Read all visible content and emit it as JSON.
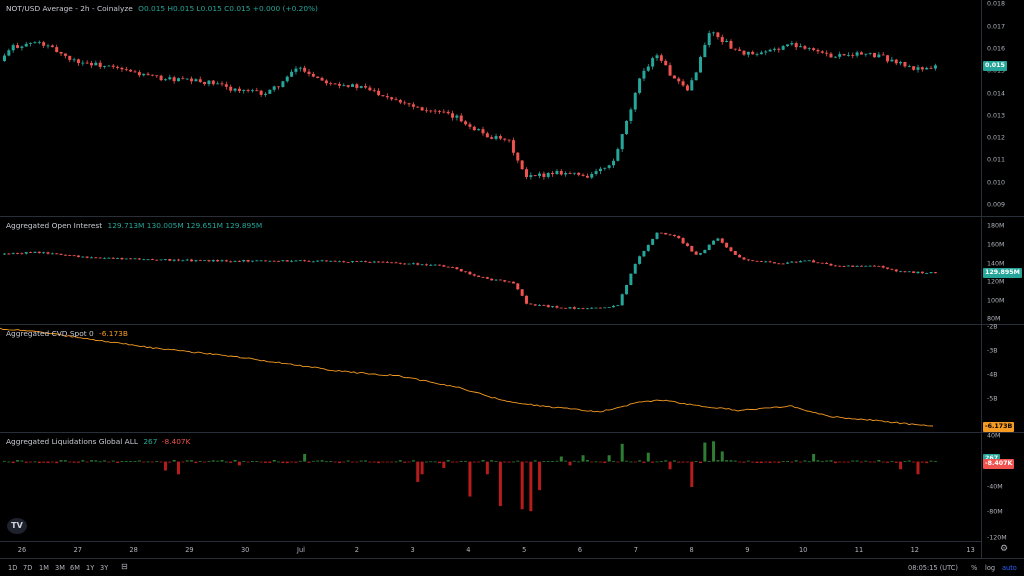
{
  "colors": {
    "up": "#26a69a",
    "down": "#ef5350",
    "cvd": "#f59a23",
    "liq_up": "#1b5e20",
    "liq_down": "#8e1f1a",
    "bg": "#000000"
  },
  "price_pane": {
    "title": "NOT/USD Average - 2h - Coinalyze",
    "ohlc": "O0.015 H0.015 L0.015 C0.015 +0.000 (+0.20%)",
    "ticks": [
      "0.018",
      "0.017",
      "0.016",
      "0.015",
      "0.014",
      "0.013",
      "0.012",
      "0.011",
      "0.010",
      "0.009"
    ],
    "last": "0.015"
  },
  "oi_pane": {
    "title": "Aggregated Open Interest",
    "ohlc": "129.713M 130.005M 129.651M 129.895M",
    "ticks": [
      "180M",
      "160M",
      "140M",
      "120M",
      "100M",
      "80M"
    ],
    "last": "129.895M"
  },
  "cvd_pane": {
    "title": "Aggregated CVD Spot 0",
    "value": "-6.173B",
    "ticks": [
      "-2B",
      "-3B",
      "-4B",
      "-5B"
    ],
    "last": "-6.173B"
  },
  "liq_pane": {
    "title": "Aggregated Liquidations Global ALL",
    "long": "267",
    "short": "-8.407K",
    "ticks": [
      "40M",
      "0",
      "-40M",
      "-80M",
      "-120M"
    ],
    "last_up": "267",
    "last_down": "-8.407K"
  },
  "x_axis": [
    "26",
    "27",
    "28",
    "29",
    "30",
    "Jul",
    "2",
    "3",
    "4",
    "5",
    "6",
    "7",
    "8",
    "9",
    "10",
    "11",
    "12",
    "13"
  ],
  "bottom_bar": {
    "timeframes": [
      "1D",
      "7D",
      "1M",
      "3M",
      "6M",
      "1Y",
      "3Y"
    ],
    "time": "08:05:15 (UTC)",
    "percent": "%",
    "log": "log",
    "auto": "auto"
  },
  "logo": "TV",
  "icons": {
    "calendar": "calendar-range-icon",
    "gear": "settings-gear-icon"
  },
  "chart_data": {
    "type": "candlestick",
    "price_anchors": [
      [
        0,
        0.0153
      ],
      [
        15,
        0.0161
      ],
      [
        40,
        0.0163
      ],
      [
        60,
        0.0159
      ],
      [
        75,
        0.0155
      ],
      [
        110,
        0.0152
      ],
      [
        160,
        0.0147
      ],
      [
        210,
        0.0145
      ],
      [
        245,
        0.0141
      ],
      [
        270,
        0.014
      ],
      [
        290,
        0.0147
      ],
      [
        300,
        0.0152
      ],
      [
        325,
        0.0146
      ],
      [
        370,
        0.0142
      ],
      [
        420,
        0.0134
      ],
      [
        460,
        0.0129
      ],
      [
        490,
        0.0121
      ],
      [
        512,
        0.0118
      ],
      [
        528,
        0.0102
      ],
      [
        540,
        0.0103
      ],
      [
        560,
        0.0105
      ],
      [
        590,
        0.0103
      ],
      [
        615,
        0.0108
      ],
      [
        630,
        0.0128
      ],
      [
        645,
        0.015
      ],
      [
        660,
        0.0158
      ],
      [
        675,
        0.0147
      ],
      [
        690,
        0.0141
      ],
      [
        700,
        0.0152
      ],
      [
        712,
        0.0168
      ],
      [
        722,
        0.0165
      ],
      [
        740,
        0.0159
      ],
      [
        760,
        0.0157
      ],
      [
        790,
        0.0162
      ],
      [
        810,
        0.0161
      ],
      [
        830,
        0.0157
      ],
      [
        855,
        0.0158
      ],
      [
        880,
        0.0157
      ],
      [
        900,
        0.0154
      ],
      [
        915,
        0.0151
      ],
      [
        935,
        0.0152
      ]
    ],
    "oi_anchors": [
      [
        0,
        150
      ],
      [
        40,
        152
      ],
      [
        100,
        146
      ],
      [
        200,
        143
      ],
      [
        300,
        143
      ],
      [
        400,
        141
      ],
      [
        450,
        137
      ],
      [
        490,
        123
      ],
      [
        515,
        120
      ],
      [
        530,
        96
      ],
      [
        560,
        93
      ],
      [
        590,
        91
      ],
      [
        620,
        95
      ],
      [
        640,
        145
      ],
      [
        660,
        174
      ],
      [
        680,
        168
      ],
      [
        700,
        148
      ],
      [
        720,
        168
      ],
      [
        740,
        146
      ],
      [
        780,
        140
      ],
      [
        810,
        143
      ],
      [
        840,
        137
      ],
      [
        880,
        137
      ],
      [
        900,
        131
      ],
      [
        935,
        130
      ]
    ],
    "cvd_anchors": [
      [
        0,
        -2.05
      ],
      [
        40,
        -2.2
      ],
      [
        100,
        -2.55
      ],
      [
        160,
        -2.9
      ],
      [
        230,
        -3.2
      ],
      [
        290,
        -3.55
      ],
      [
        340,
        -3.85
      ],
      [
        400,
        -4.05
      ],
      [
        460,
        -4.55
      ],
      [
        510,
        -5.15
      ],
      [
        550,
        -5.35
      ],
      [
        600,
        -5.55
      ],
      [
        640,
        -5.15
      ],
      [
        660,
        -5.05
      ],
      [
        700,
        -5.3
      ],
      [
        740,
        -5.5
      ],
      [
        790,
        -5.3
      ],
      [
        830,
        -5.75
      ],
      [
        870,
        -5.9
      ],
      [
        935,
        -6.17
      ]
    ],
    "liq_spikes": [
      [
        163,
        -14
      ],
      [
        173,
        -20
      ],
      [
        236,
        -6
      ],
      [
        301,
        12
      ],
      [
        414,
        -32
      ],
      [
        418,
        -20
      ],
      [
        440,
        -10
      ],
      [
        465,
        -55
      ],
      [
        485,
        -20
      ],
      [
        498,
        -70
      ],
      [
        519,
        -75
      ],
      [
        526,
        -78
      ],
      [
        533,
        -45
      ],
      [
        556,
        8
      ],
      [
        566,
        -6
      ],
      [
        578,
        10
      ],
      [
        605,
        10
      ],
      [
        618,
        28
      ],
      [
        645,
        14
      ],
      [
        666,
        -12
      ],
      [
        687,
        -40
      ],
      [
        700,
        30
      ],
      [
        710,
        32
      ],
      [
        716,
        16
      ],
      [
        811,
        12
      ],
      [
        896,
        -12
      ],
      [
        915,
        -20
      ]
    ],
    "price_ylim": [
      0.0085,
      0.0182
    ],
    "oi_ylim": [
      75,
      190
    ],
    "cvd_ylim": [
      -6.4,
      -1.9
    ],
    "liq_ylim": [
      -125,
      45
    ]
  }
}
